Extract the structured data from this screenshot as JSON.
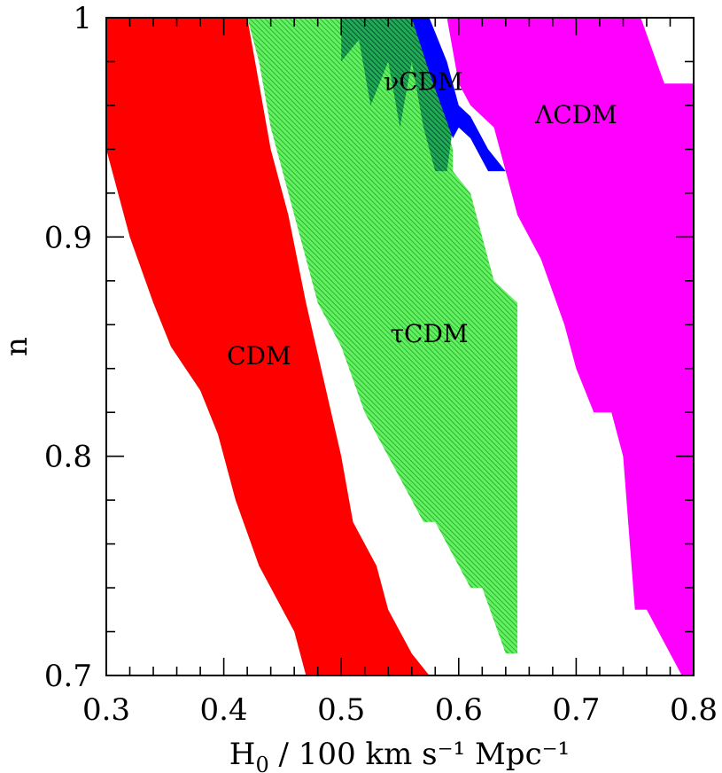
{
  "chart_data": {
    "type": "area",
    "title": "",
    "xlabel": "H",
    "xlabel_sub": "0",
    "xlabel_rest": " / 100 km s⁻¹ Mpc⁻¹",
    "ylabel": "n",
    "xlim": [
      0.3,
      0.8
    ],
    "ylim": [
      0.7,
      1.0
    ],
    "x_ticks": [
      0.3,
      0.4,
      0.5,
      0.6,
      0.7,
      0.8
    ],
    "x_tick_labels": [
      "0.3",
      "0.4",
      "0.5",
      "0.6",
      "0.7",
      "0.8"
    ],
    "y_ticks": [
      0.7,
      0.8,
      0.9,
      1.0
    ],
    "y_tick_labels": [
      "0.7",
      "0.8",
      "0.9",
      "1"
    ],
    "x_minor_step": 0.02,
    "y_minor_step": 0.02,
    "grid": false,
    "legend": "none",
    "regions": [
      {
        "name": "CDM",
        "color": "#ff0000",
        "fill": "solid",
        "label_at": [
          0.43,
          0.845
        ],
        "polygon": [
          [
            0.3,
            1.0
          ],
          [
            0.42,
            1.0
          ],
          [
            0.43,
            0.97
          ],
          [
            0.44,
            0.94
          ],
          [
            0.455,
            0.91
          ],
          [
            0.47,
            0.87
          ],
          [
            0.5,
            0.8
          ],
          [
            0.51,
            0.77
          ],
          [
            0.53,
            0.75
          ],
          [
            0.54,
            0.73
          ],
          [
            0.56,
            0.71
          ],
          [
            0.575,
            0.7
          ],
          [
            0.47,
            0.7
          ],
          [
            0.46,
            0.72
          ],
          [
            0.43,
            0.75
          ],
          [
            0.41,
            0.78
          ],
          [
            0.395,
            0.81
          ],
          [
            0.38,
            0.83
          ],
          [
            0.355,
            0.85
          ],
          [
            0.34,
            0.87
          ],
          [
            0.32,
            0.9
          ],
          [
            0.3,
            0.94
          ]
        ]
      },
      {
        "name": "τCDM",
        "color": "#44dd44",
        "fill": "hatched",
        "label_at": [
          0.575,
          0.855
        ],
        "polygon": [
          [
            0.42,
            1.0
          ],
          [
            0.56,
            1.0
          ],
          [
            0.595,
            0.94
          ],
          [
            0.595,
            0.93
          ],
          [
            0.61,
            0.92
          ],
          [
            0.62,
            0.9
          ],
          [
            0.63,
            0.88
          ],
          [
            0.65,
            0.87
          ],
          [
            0.65,
            0.71
          ],
          [
            0.64,
            0.71
          ],
          [
            0.62,
            0.74
          ],
          [
            0.61,
            0.74
          ],
          [
            0.58,
            0.77
          ],
          [
            0.57,
            0.77
          ],
          [
            0.55,
            0.79
          ],
          [
            0.52,
            0.82
          ],
          [
            0.5,
            0.85
          ],
          [
            0.48,
            0.87
          ],
          [
            0.46,
            0.91
          ],
          [
            0.44,
            0.95
          ],
          [
            0.43,
            0.98
          ]
        ]
      },
      {
        "name": "νCDM",
        "color": "#008844",
        "fill": "hatched",
        "label_at": [
          0.57,
          0.97
        ],
        "polygon": [
          [
            0.5,
            1.0
          ],
          [
            0.56,
            1.0
          ],
          [
            0.575,
            0.98
          ],
          [
            0.59,
            0.96
          ],
          [
            0.595,
            0.95
          ],
          [
            0.59,
            0.93
          ],
          [
            0.58,
            0.93
          ],
          [
            0.57,
            0.95
          ],
          [
            0.56,
            0.98
          ],
          [
            0.55,
            0.95
          ],
          [
            0.54,
            0.98
          ],
          [
            0.525,
            0.96
          ],
          [
            0.515,
            0.99
          ],
          [
            0.5,
            0.98
          ]
        ]
      },
      {
        "name": "ΛCDM",
        "color": "#ff00ff",
        "fill": "solid",
        "label_at": [
          0.7,
          0.955
        ],
        "polygon": [
          [
            0.59,
            1.0
          ],
          [
            0.755,
            1.0
          ],
          [
            0.775,
            0.97
          ],
          [
            0.8,
            0.97
          ],
          [
            0.8,
            0.7
          ],
          [
            0.79,
            0.7
          ],
          [
            0.77,
            0.72
          ],
          [
            0.76,
            0.73
          ],
          [
            0.75,
            0.73
          ],
          [
            0.74,
            0.8
          ],
          [
            0.73,
            0.82
          ],
          [
            0.715,
            0.82
          ],
          [
            0.7,
            0.84
          ],
          [
            0.69,
            0.86
          ],
          [
            0.67,
            0.89
          ],
          [
            0.65,
            0.91
          ],
          [
            0.64,
            0.93
          ],
          [
            0.63,
            0.95
          ],
          [
            0.61,
            0.96
          ],
          [
            0.6,
            0.97
          ]
        ]
      },
      {
        "name": "band",
        "color": "#0000ff",
        "fill": "solid",
        "label_at": null,
        "polygon": [
          [
            0.56,
            1.0
          ],
          [
            0.575,
            1.0
          ],
          [
            0.59,
            0.98
          ],
          [
            0.6,
            0.96
          ],
          [
            0.61,
            0.955
          ],
          [
            0.625,
            0.94
          ],
          [
            0.64,
            0.93
          ],
          [
            0.625,
            0.93
          ],
          [
            0.61,
            0.945
          ],
          [
            0.6,
            0.95
          ],
          [
            0.595,
            0.945
          ],
          [
            0.585,
            0.96
          ],
          [
            0.575,
            0.975
          ]
        ]
      }
    ]
  }
}
